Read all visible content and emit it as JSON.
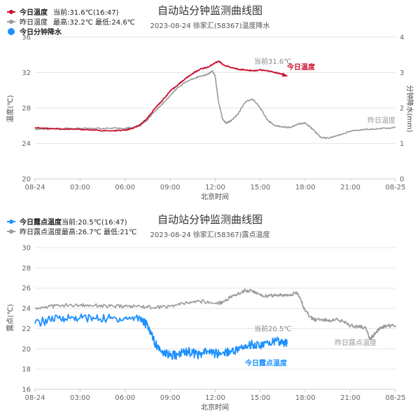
{
  "chart_data": [
    {
      "type": "line",
      "title": "自动站分钟监测曲线图",
      "subtitle": "2023-08-24 徐家汇(58367)温度降水",
      "xlabel": "北京时间",
      "ylabel": "温度(℃)",
      "y2label": "分钟降水(mm)",
      "ylim": [
        20,
        36
      ],
      "yticks": [
        20,
        24,
        28,
        32,
        36
      ],
      "y2lim": [
        0,
        4
      ],
      "y2ticks": [
        0,
        1,
        2,
        3,
        4
      ],
      "xlim": [
        0,
        24
      ],
      "xticks": [
        0,
        3,
        6,
        9,
        12,
        15,
        18,
        21,
        24
      ],
      "xtick_labels": [
        "08-24",
        "03:00",
        "06:00",
        "09:00",
        "12:00",
        "15:00",
        "18:00",
        "21:00",
        "08-25"
      ],
      "legend": [
        {
          "label": "今日温度",
          "extra": "当前:31.6℃(16:47)",
          "color": "#c8102e"
        },
        {
          "label": "昨日温度",
          "extra": "最高:32.2℃ 最低:24.6℃",
          "color": "#9a9a9a"
        },
        {
          "label": "今日分钟降水",
          "extra": "",
          "color": "#1e90ff"
        }
      ],
      "annotations": {
        "current": "当前31.6℃",
        "today_label": "今日温度",
        "yesterday_label": "昨日温度"
      },
      "series": [
        {
          "name": "今日温度",
          "color": "#c8102e",
          "x": [
            0,
            1,
            2,
            3,
            4,
            5,
            6,
            6.5,
            7,
            7.5,
            8,
            8.5,
            9,
            9.5,
            10,
            10.5,
            11,
            11.5,
            12,
            12.25,
            12.5,
            13,
            13.5,
            14,
            14.5,
            15,
            15.5,
            16,
            16.5,
            16.78
          ],
          "y": [
            25.8,
            25.7,
            25.6,
            25.6,
            25.5,
            25.4,
            25.5,
            25.7,
            26.1,
            26.9,
            28.0,
            28.9,
            29.9,
            30.6,
            31.3,
            31.9,
            32.4,
            32.6,
            33.1,
            33.3,
            32.9,
            32.6,
            32.4,
            32.3,
            32.2,
            32.3,
            32.2,
            32.0,
            31.8,
            31.6
          ]
        },
        {
          "name": "昨日温度",
          "color": "#9a9a9a",
          "x": [
            0,
            1,
            2,
            3,
            4,
            5,
            6,
            6.5,
            7,
            7.5,
            8,
            8.5,
            9,
            9.5,
            10,
            10.5,
            11,
            11.5,
            11.8,
            12,
            12.2,
            12.5,
            12.7,
            13,
            13.5,
            14,
            14.5,
            15,
            15.5,
            16,
            16.5,
            17,
            17.5,
            18,
            18.5,
            19,
            19.5,
            20,
            21,
            22,
            23,
            24
          ],
          "y": [
            25.6,
            25.6,
            25.7,
            25.7,
            25.7,
            25.7,
            25.7,
            25.8,
            26.0,
            26.7,
            27.7,
            28.5,
            29.4,
            30.3,
            30.9,
            31.3,
            31.6,
            31.8,
            32.2,
            31.6,
            28.8,
            26.7,
            26.3,
            26.5,
            27.3,
            28.7,
            29.0,
            28.0,
            26.6,
            26.0,
            25.9,
            25.8,
            26.2,
            26.3,
            25.6,
            24.7,
            24.6,
            24.8,
            25.4,
            25.6,
            25.7,
            25.8
          ]
        }
      ]
    },
    {
      "type": "line",
      "title": "自动站分钟监测曲线图",
      "subtitle": "2023-08-24 徐家汇(58367)露点温度",
      "xlabel": "北京时间",
      "ylabel": "露点(℃)",
      "ylim": [
        16,
        30
      ],
      "yticks": [
        16,
        18,
        20,
        22,
        24,
        26,
        28,
        30
      ],
      "xlim": [
        0,
        24
      ],
      "xticks": [
        0,
        3,
        6,
        9,
        12,
        15,
        18,
        21,
        24
      ],
      "xtick_labels": [
        "08-24",
        "03:00",
        "06:00",
        "09:00",
        "12:00",
        "15:00",
        "18:00",
        "21:00",
        "08-25"
      ],
      "legend": [
        {
          "label": "今日露点温度",
          "extra": "当前:20.5℃(16:47)",
          "color": "#1e90ff"
        },
        {
          "label": "昨日露点温度",
          "extra": "最高:26.7℃ 最低:21℃",
          "color": "#9a9a9a"
        }
      ],
      "annotations": {
        "current": "当前20.5℃",
        "today_label": "今日露点温度",
        "yesterday_label": "昨日露点温度"
      },
      "series": [
        {
          "name": "今日露点温度",
          "color": "#1e90ff",
          "x": [
            0,
            1,
            2,
            3,
            4,
            5,
            6,
            7,
            7.3,
            7.7,
            8,
            8.5,
            9,
            9.5,
            10,
            10.5,
            11,
            11.5,
            12,
            12.5,
            13,
            13.5,
            14,
            14.5,
            15,
            15.5,
            16,
            16.5,
            16.78
          ],
          "y": [
            22.5,
            22.9,
            23.0,
            23.1,
            23.0,
            23.0,
            23.0,
            23.1,
            22.6,
            21.8,
            20.5,
            19.8,
            19.3,
            19.4,
            19.8,
            19.6,
            19.4,
            19.8,
            19.5,
            19.6,
            19.8,
            19.9,
            20.3,
            20.5,
            20.3,
            20.6,
            20.8,
            20.6,
            20.5
          ]
        },
        {
          "name": "昨日露点温度",
          "color": "#9a9a9a",
          "x": [
            0,
            1,
            2,
            3,
            4,
            5,
            6,
            7,
            8,
            9,
            10,
            11,
            12,
            12.5,
            13,
            13.5,
            14,
            14.5,
            15,
            15.5,
            16,
            16.5,
            17,
            17.5,
            18,
            18.5,
            19,
            19.5,
            20,
            20.5,
            21,
            21.5,
            22,
            22.3,
            22.7,
            23,
            23.5,
            24
          ],
          "y": [
            24.0,
            24.2,
            24.3,
            24.3,
            24.3,
            24.2,
            24.2,
            24.2,
            24.1,
            24.2,
            24.5,
            24.7,
            24.5,
            24.6,
            25.1,
            25.4,
            25.8,
            25.7,
            25.3,
            25.2,
            25.3,
            25.3,
            25.4,
            25.5,
            23.7,
            22.9,
            22.9,
            22.8,
            22.9,
            22.7,
            22.3,
            22.2,
            22.1,
            21.0,
            21.6,
            22.1,
            22.3,
            22.3
          ]
        }
      ]
    }
  ]
}
